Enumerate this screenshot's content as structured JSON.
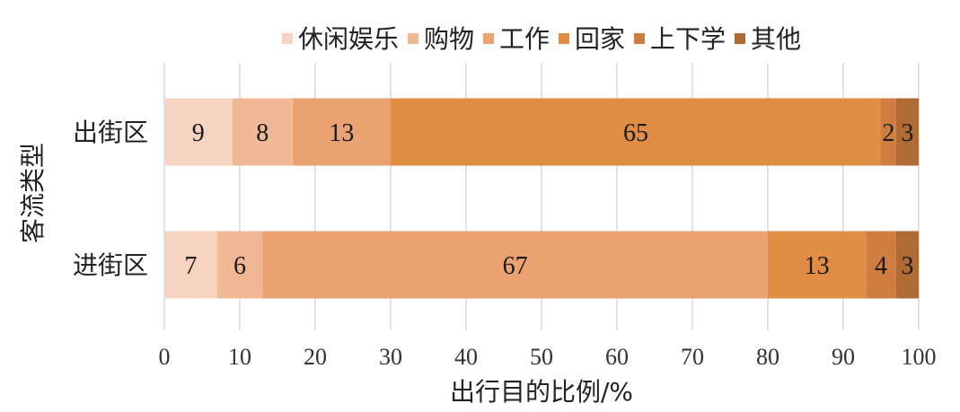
{
  "chart_data": {
    "type": "bar",
    "orientation": "horizontal",
    "stacked": true,
    "title": "",
    "xlabel": "出行目的比例/%",
    "ylabel": "客流类型",
    "xlim": [
      0,
      100
    ],
    "xticks": [
      "0",
      "10",
      "20",
      "30",
      "40",
      "50",
      "60",
      "70",
      "80",
      "90",
      "100"
    ],
    "grid": "vertical",
    "legend_position": "top",
    "categories": [
      "出街区",
      "进街区"
    ],
    "series": [
      {
        "name": "休闲娱乐",
        "color": "#f7d3c1",
        "values": [
          9,
          7
        ]
      },
      {
        "name": "购物",
        "color": "#f1b896",
        "values": [
          8,
          6
        ]
      },
      {
        "name": "工作",
        "color": "#eba272",
        "values": [
          13,
          67
        ]
      },
      {
        "name": "回家",
        "color": "#e18d45",
        "values": [
          65,
          13
        ]
      },
      {
        "name": "上下学",
        "color": "#cf7d40",
        "values": [
          2,
          4
        ]
      },
      {
        "name": "其他",
        "color": "#b06a34",
        "values": [
          3,
          3
        ]
      }
    ]
  }
}
